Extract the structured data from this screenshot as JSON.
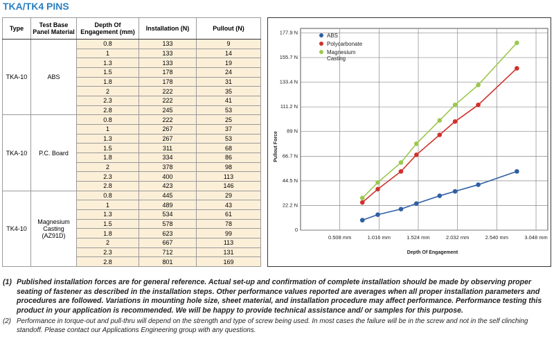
{
  "header": {
    "title": "TKA/TK4 PINS"
  },
  "table": {
    "columns": [
      "Type",
      "Test Base Panel Material",
      "Depth Of Engagement (mm)",
      "Installation (N)",
      "Pullout (N)"
    ],
    "groups": [
      {
        "type": "TKA-10",
        "material": "ABS",
        "rows": [
          [
            0.8,
            133,
            9
          ],
          [
            1,
            133,
            14
          ],
          [
            1.3,
            133,
            19
          ],
          [
            1.5,
            178,
            24
          ],
          [
            1.8,
            178,
            31
          ],
          [
            2,
            222,
            35
          ],
          [
            2.3,
            222,
            41
          ],
          [
            2.8,
            245,
            53
          ]
        ]
      },
      {
        "type": "TKA-10",
        "material": "P.C. Board",
        "rows": [
          [
            0.8,
            222,
            25
          ],
          [
            1,
            267,
            37
          ],
          [
            1.3,
            267,
            53
          ],
          [
            1.5,
            311,
            68
          ],
          [
            1.8,
            334,
            86
          ],
          [
            2,
            378,
            98
          ],
          [
            2.3,
            400,
            113
          ],
          [
            2.8,
            423,
            146
          ]
        ]
      },
      {
        "type": "TK4-10",
        "material": "Magnesium Casting (AZ91D)",
        "rows": [
          [
            0.8,
            445,
            29
          ],
          [
            1,
            489,
            43
          ],
          [
            1.3,
            534,
            61
          ],
          [
            1.5,
            578,
            78
          ],
          [
            1.8,
            623,
            99
          ],
          [
            2,
            667,
            113
          ],
          [
            2.3,
            712,
            131
          ],
          [
            2.8,
            801,
            169
          ]
        ]
      }
    ]
  },
  "chart_data": {
    "type": "line",
    "x_label": "Depth Of Engagement",
    "y_label": "Pullout Force",
    "x": [
      0.8,
      1,
      1.3,
      1.5,
      1.8,
      2,
      2.3,
      2.8
    ],
    "series": [
      {
        "name": "ABS",
        "color": "#2e5fa3",
        "values": [
          9,
          14,
          19,
          24,
          31,
          35,
          41,
          53
        ]
      },
      {
        "name": "Polycarbonate",
        "color": "#d0312d",
        "values": [
          25,
          37,
          53,
          68,
          86,
          98,
          113,
          146
        ]
      },
      {
        "name": "Magnesium Casting",
        "color": "#9cc74f",
        "values": [
          29,
          43,
          61,
          78,
          99,
          113,
          131,
          169
        ]
      }
    ],
    "xlim": [
      0,
      3.2
    ],
    "ylim": [
      0,
      182
    ],
    "xticks": [
      {
        "value": 0.508,
        "label": "0.508 mm"
      },
      {
        "value": 1.016,
        "label": "1.016 mm"
      },
      {
        "value": 1.524,
        "label": "1.524 mm"
      },
      {
        "value": 2.032,
        "label": "2.032 mm"
      },
      {
        "value": 2.54,
        "label": "2.540 mm"
      },
      {
        "value": 3.048,
        "label": "3.048 mm"
      }
    ],
    "yticks": [
      0,
      {
        "value": 22.2,
        "label": "22.2 N"
      },
      {
        "value": 44.5,
        "label": "44.5 N"
      },
      {
        "value": 66.7,
        "label": "66.7 N"
      },
      {
        "value": 89,
        "label": "89 N"
      },
      {
        "value": 111.2,
        "label": "111.2 N"
      },
      {
        "value": 133.4,
        "label": "133.4 N"
      },
      {
        "value": 155.7,
        "label": "155.7 N"
      },
      {
        "value": 177.9,
        "label": "177.9 N"
      }
    ],
    "grid": true
  },
  "notes": [
    {
      "marker": "(1)",
      "text": "Published installation forces are for general reference. Actual set-up and confirmation of complete installation should be made by observing proper seating of fastener as described in the installation steps.  Other performance values reported are averages when all proper installation parameters and procedures are followed. Variations in mounting hole size, sheet material, and installation procedure may affect performance.  Performance testing this product in your application is recommended.  We will be happy to provide technical assistance and/ or samples for this purpose."
    },
    {
      "marker": "(2)",
      "text": "Performance in torque-out and pull-thru will depend on the strength and type of screw being used. In most cases the failure will be in the screw and not in the self clinching standoff. Please contact our Applications Engineering group with any questions."
    }
  ]
}
